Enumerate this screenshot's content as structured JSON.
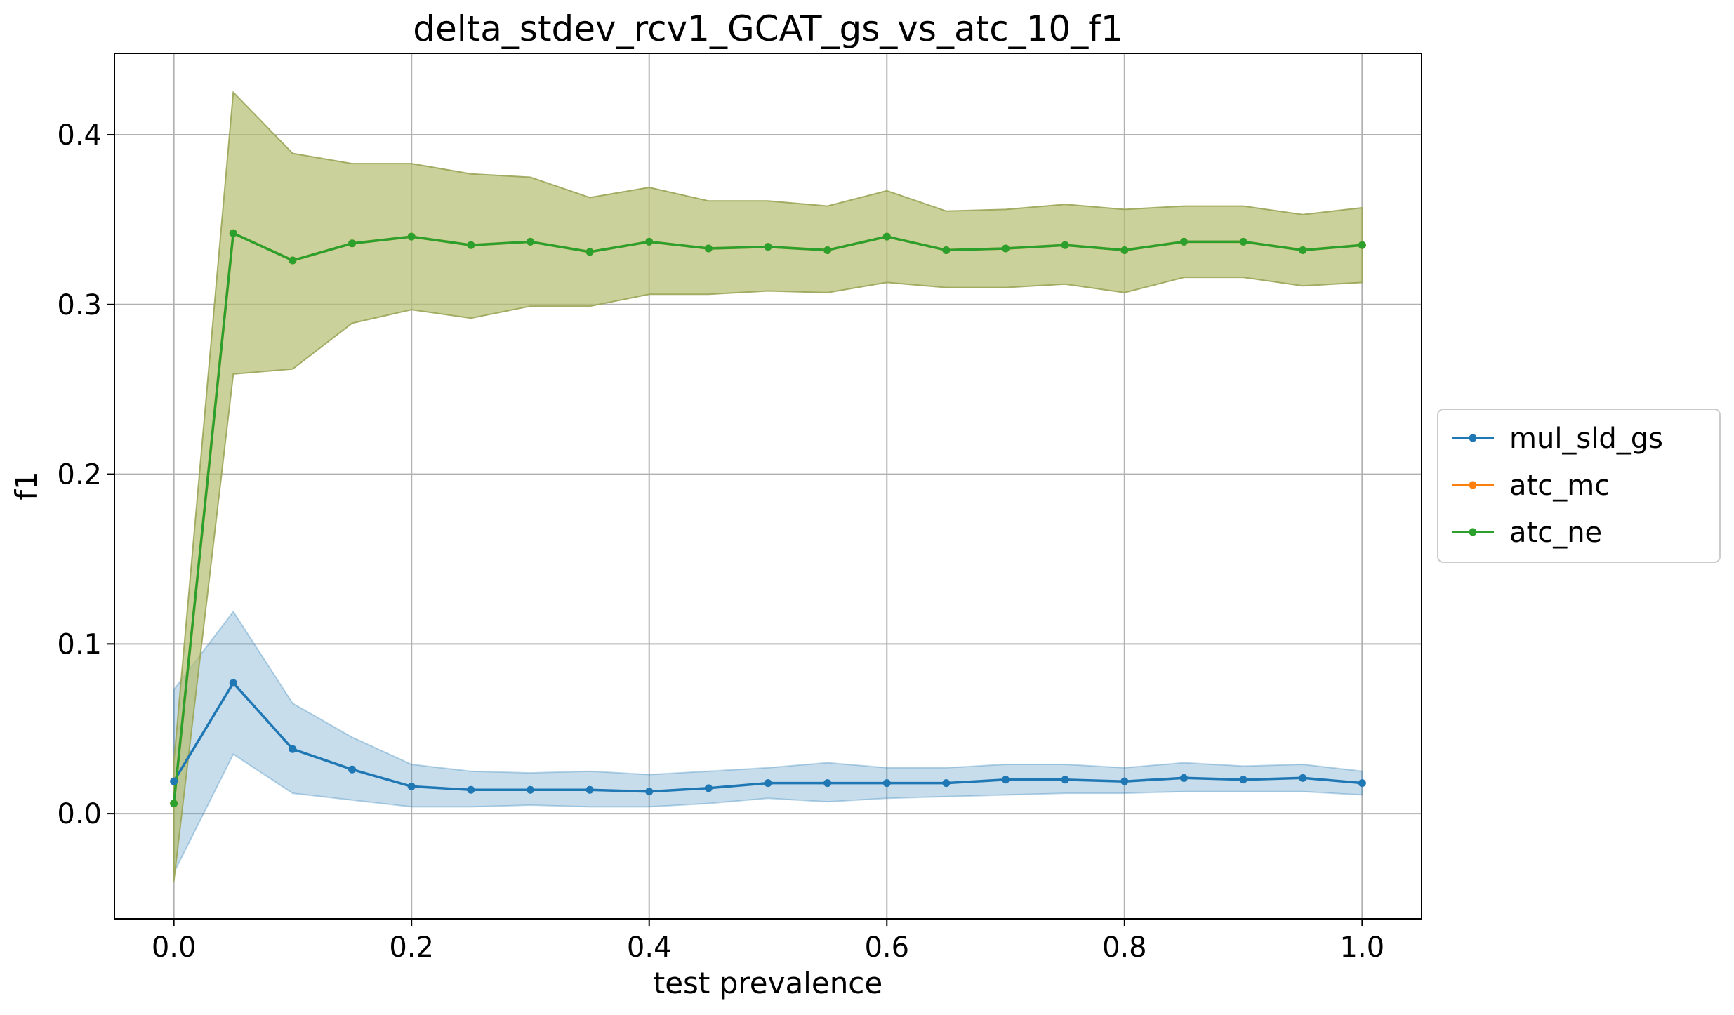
{
  "chart_data": {
    "type": "line",
    "title": "delta_stdev_rcv1_GCAT_gs_vs_atc_10_f1",
    "xlabel": "test prevalence",
    "ylabel": "f1",
    "xlim": [
      -0.05,
      1.05
    ],
    "ylim": [
      -0.062,
      0.448
    ],
    "xticks": [
      "0.0",
      "0.2",
      "0.4",
      "0.6",
      "0.8",
      "1.0"
    ],
    "yticks": [
      "0.0",
      "0.1",
      "0.2",
      "0.3",
      "0.4"
    ],
    "grid": true,
    "legend_position": "right, outside plot",
    "x": [
      0.0,
      0.05,
      0.1,
      0.15,
      0.2,
      0.25,
      0.3,
      0.35,
      0.4,
      0.45,
      0.5,
      0.55,
      0.6,
      0.65,
      0.7,
      0.75,
      0.8,
      0.85,
      0.9,
      0.95,
      1.0
    ],
    "series": [
      {
        "name": "mul_sld_gs",
        "color": "#1f77b4",
        "values": [
          0.019,
          0.077,
          0.038,
          0.026,
          0.016,
          0.014,
          0.014,
          0.014,
          0.013,
          0.015,
          0.018,
          0.018,
          0.018,
          0.018,
          0.02,
          0.02,
          0.019,
          0.021,
          0.02,
          0.021,
          0.018
        ],
        "band_upper": [
          0.073,
          0.119,
          0.065,
          0.045,
          0.029,
          0.025,
          0.024,
          0.025,
          0.023,
          0.025,
          0.027,
          0.03,
          0.027,
          0.027,
          0.029,
          0.029,
          0.027,
          0.03,
          0.028,
          0.029,
          0.025
        ],
        "band_lower": [
          -0.035,
          0.035,
          0.012,
          0.008,
          0.004,
          0.004,
          0.005,
          0.004,
          0.004,
          0.006,
          0.009,
          0.007,
          0.009,
          0.01,
          0.011,
          0.012,
          0.012,
          0.013,
          0.013,
          0.013,
          0.011
        ]
      },
      {
        "name": "atc_mc",
        "color": "#ff7f0e",
        "values": [
          0.006,
          0.342,
          0.326,
          0.336,
          0.34,
          0.335,
          0.337,
          0.331,
          0.337,
          0.333,
          0.334,
          0.332,
          0.34,
          0.332,
          0.333,
          0.335,
          0.332,
          0.337,
          0.337,
          0.332,
          0.335
        ]
      },
      {
        "name": "atc_ne",
        "color": "#2ca02c",
        "values": [
          0.006,
          0.342,
          0.326,
          0.336,
          0.34,
          0.335,
          0.337,
          0.331,
          0.337,
          0.333,
          0.334,
          0.332,
          0.34,
          0.332,
          0.333,
          0.335,
          0.332,
          0.337,
          0.337,
          0.332,
          0.335
        ],
        "band_upper": [
          0.03,
          0.425,
          0.389,
          0.383,
          0.383,
          0.377,
          0.375,
          0.363,
          0.369,
          0.361,
          0.361,
          0.358,
          0.367,
          0.355,
          0.356,
          0.359,
          0.356,
          0.358,
          0.358,
          0.353,
          0.357
        ],
        "band_lower": [
          -0.04,
          0.259,
          0.262,
          0.289,
          0.297,
          0.292,
          0.299,
          0.299,
          0.306,
          0.306,
          0.308,
          0.307,
          0.313,
          0.31,
          0.31,
          0.312,
          0.307,
          0.316,
          0.316,
          0.311,
          0.313
        ]
      }
    ],
    "band_colors": {
      "mul_sld_gs": "#1f77b4",
      "atc_mc": "#ff7f0e",
      "atc_ne": "#2ca02c"
    }
  }
}
